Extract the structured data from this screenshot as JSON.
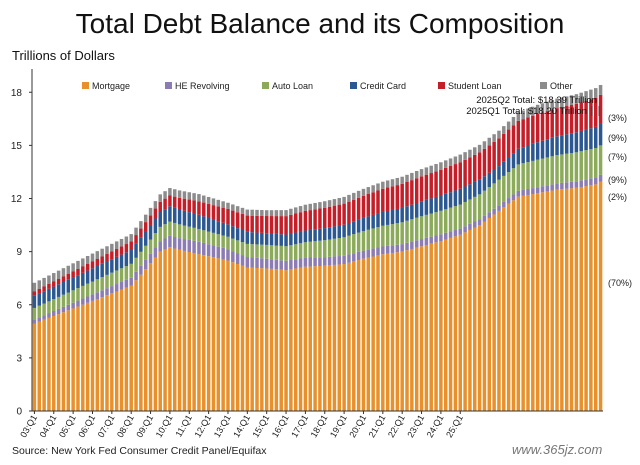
{
  "page": {
    "title": "Total Debt Balance and its Composition",
    "source": "Source: New York Fed Consumer Credit Panel/Equifax",
    "watermark": "www.365jz.com"
  },
  "chart_data": {
    "type": "bar",
    "stacked": true,
    "title": "Total Debt Balance and its Composition",
    "ylabel": "Trillions of Dollars",
    "ylim": [
      0,
      19.2
    ],
    "yticks": [
      0,
      3,
      6,
      9,
      12,
      15,
      18
    ],
    "grid": false,
    "legend_position": "top",
    "x_start": "03:Q1",
    "x_end": "25:Q2",
    "x_tick_labels": [
      "03:Q1",
      "04:Q1",
      "05:Q1",
      "06:Q1",
      "07:Q1",
      "08:Q1",
      "09:Q1",
      "10:Q1",
      "11:Q1",
      "12:Q1",
      "13:Q1",
      "14:Q1",
      "15:Q1",
      "16:Q1",
      "17:Q1",
      "18:Q1",
      "19:Q1",
      "20:Q1",
      "21:Q1",
      "22:Q1",
      "23:Q1",
      "24:Q1",
      "25:Q1"
    ],
    "series": [
      {
        "name": "Mortgage",
        "color": "#E8902B",
        "anchors": [
          [
            0,
            4.94
          ],
          [
            20,
            7.07
          ],
          [
            23,
            8.01
          ],
          [
            26,
            9.0
          ],
          [
            28,
            9.25
          ],
          [
            30,
            9.1
          ],
          [
            35,
            8.8
          ],
          [
            40,
            8.5
          ],
          [
            44,
            8.1
          ],
          [
            48,
            8.05
          ],
          [
            52,
            7.95
          ],
          [
            56,
            8.15
          ],
          [
            60,
            8.2
          ],
          [
            64,
            8.3
          ],
          [
            68,
            8.6
          ],
          [
            72,
            8.85
          ],
          [
            76,
            9.0
          ],
          [
            80,
            9.3
          ],
          [
            84,
            9.6
          ],
          [
            88,
            9.95
          ],
          [
            92,
            10.5
          ],
          [
            96,
            11.3
          ],
          [
            100,
            12.1
          ],
          [
            104,
            12.3
          ],
          [
            108,
            12.5
          ],
          [
            112,
            12.6
          ],
          [
            116,
            12.8
          ],
          [
            117,
            12.94
          ]
        ]
      },
      {
        "name": "HE Revolving",
        "color": "#8B7CB3",
        "anchors": [
          [
            0,
            0.24
          ],
          [
            20,
            0.45
          ],
          [
            28,
            0.64
          ],
          [
            34,
            0.7
          ],
          [
            40,
            0.64
          ],
          [
            48,
            0.55
          ],
          [
            56,
            0.51
          ],
          [
            64,
            0.47
          ],
          [
            72,
            0.44
          ],
          [
            80,
            0.41
          ],
          [
            88,
            0.35
          ],
          [
            96,
            0.32
          ],
          [
            104,
            0.34
          ],
          [
            112,
            0.37
          ],
          [
            117,
            0.4
          ]
        ]
      },
      {
        "name": "Auto Loan",
        "color": "#8BAA5A",
        "anchors": [
          [
            0,
            0.64
          ],
          [
            20,
            0.79
          ],
          [
            28,
            0.81
          ],
          [
            34,
            0.72
          ],
          [
            40,
            0.7
          ],
          [
            48,
            0.78
          ],
          [
            56,
            0.87
          ],
          [
            64,
            1.04
          ],
          [
            72,
            1.17
          ],
          [
            80,
            1.29
          ],
          [
            88,
            1.36
          ],
          [
            96,
            1.44
          ],
          [
            104,
            1.55
          ],
          [
            112,
            1.64
          ],
          [
            117,
            1.66
          ]
        ]
      },
      {
        "name": "Credit Card",
        "color": "#2B5891",
        "anchors": [
          [
            0,
            0.69
          ],
          [
            20,
            0.78
          ],
          [
            28,
            0.86
          ],
          [
            34,
            0.8
          ],
          [
            40,
            0.7
          ],
          [
            48,
            0.66
          ],
          [
            56,
            0.66
          ],
          [
            64,
            0.71
          ],
          [
            72,
            0.78
          ],
          [
            80,
            0.84
          ],
          [
            88,
            0.89
          ],
          [
            96,
            0.77
          ],
          [
            104,
            0.99
          ],
          [
            112,
            1.13
          ],
          [
            117,
            1.21
          ]
        ]
      },
      {
        "name": "Student Loan",
        "color": "#C41E28",
        "anchors": [
          [
            0,
            0.24
          ],
          [
            20,
            0.48
          ],
          [
            28,
            0.61
          ],
          [
            34,
            0.76
          ],
          [
            40,
            0.87
          ],
          [
            48,
            0.97
          ],
          [
            56,
            1.11
          ],
          [
            64,
            1.19
          ],
          [
            72,
            1.31
          ],
          [
            80,
            1.41
          ],
          [
            88,
            1.5
          ],
          [
            96,
            1.57
          ],
          [
            104,
            1.59
          ],
          [
            112,
            1.6
          ],
          [
            117,
            1.64
          ]
        ]
      },
      {
        "name": "Other",
        "color": "#8C8C8C",
        "anchors": [
          [
            0,
            0.49
          ],
          [
            20,
            0.42
          ],
          [
            28,
            0.42
          ],
          [
            34,
            0.41
          ],
          [
            40,
            0.35
          ],
          [
            48,
            0.33
          ],
          [
            56,
            0.35
          ],
          [
            64,
            0.38
          ],
          [
            72,
            0.4
          ],
          [
            80,
            0.41
          ],
          [
            88,
            0.43
          ],
          [
            96,
            0.43
          ],
          [
            104,
            0.52
          ],
          [
            112,
            0.55
          ],
          [
            117,
            0.56
          ]
        ]
      }
    ],
    "annotations": [
      {
        "text": "2025Q2 Total: $18.39 Trillion"
      },
      {
        "text": "2025Q1 Total: $18.20 Trillion"
      }
    ],
    "share_labels": [
      {
        "series": "Other",
        "text": "(3%)"
      },
      {
        "series": "Student Loan",
        "text": "(9%)"
      },
      {
        "series": "Credit Card",
        "text": "(7%)"
      },
      {
        "series": "Auto Loan",
        "text": "(9%)"
      },
      {
        "series": "HE Revolving",
        "text": "(2%)"
      },
      {
        "series": "Mortgage",
        "text": "(70%)"
      }
    ]
  }
}
